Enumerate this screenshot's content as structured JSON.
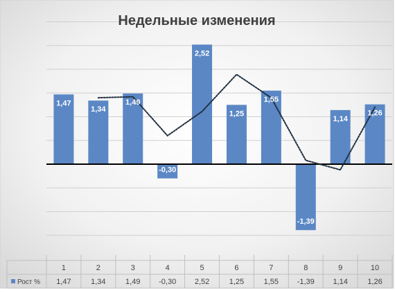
{
  "chart_data": {
    "type": "bar",
    "title": "Недельные изменения",
    "categories": [
      "1",
      "2",
      "3",
      "4",
      "5",
      "6",
      "7",
      "8",
      "9",
      "10"
    ],
    "series": [
      {
        "name": "Рост %",
        "values": [
          1.47,
          1.34,
          1.49,
          -0.3,
          2.52,
          1.25,
          1.55,
          -1.39,
          1.14,
          1.26
        ],
        "labels": [
          "1,47",
          "1,34",
          "1,49",
          "-0,30",
          "2,52",
          "1,25",
          "1,55",
          "-1,39",
          "1,14",
          "1,26"
        ]
      }
    ],
    "trendline": {
      "type": "moving-average",
      "style": "dotted",
      "color": "#1f2d3d",
      "from_category": "2",
      "values": [
        1.4,
        1.42,
        0.6,
        1.11,
        1.89,
        1.4,
        0.08,
        -0.12,
        1.2
      ]
    },
    "bar_color": "#5b87c5",
    "ylim": [
      -1.5,
      3.0
    ],
    "grid": true,
    "data_table": true,
    "legend": "data-table"
  }
}
